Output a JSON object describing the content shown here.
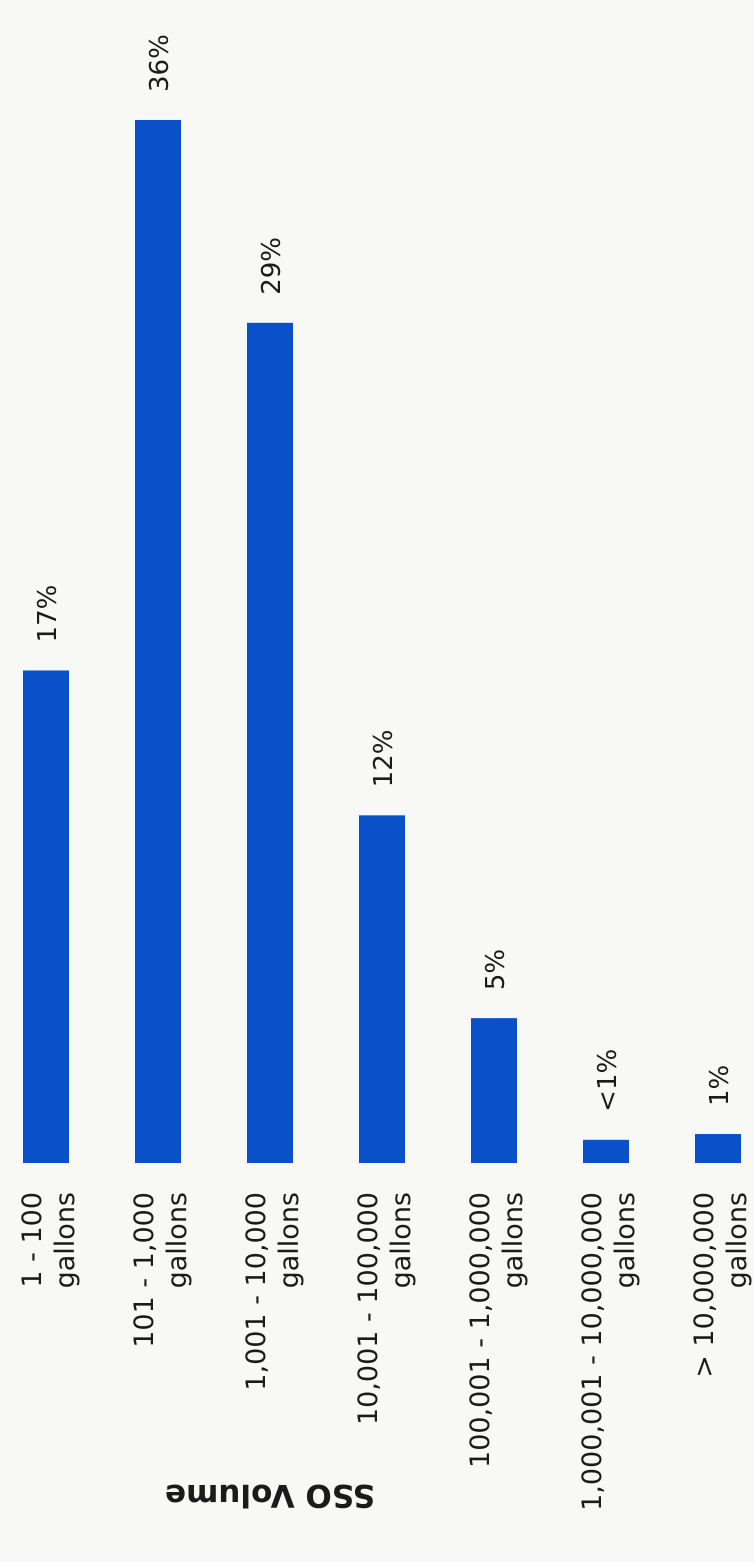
{
  "chart_data": {
    "type": "bar",
    "orientation": "rotated-90-clockwise",
    "categories": [
      [
        "1 - 100",
        "gallons"
      ],
      [
        "101 - 1,000",
        "gallons"
      ],
      [
        "1,001 - 10,000",
        "gallons"
      ],
      [
        "10,001 - 100,000",
        "gallons"
      ],
      [
        "100,001 - 1,000,000",
        "gallons"
      ],
      [
        "1,000,001 - 10,000,000",
        "gallons"
      ],
      [
        "> 10,000,000",
        "gallons"
      ]
    ],
    "values": [
      17,
      36,
      29,
      12,
      5,
      0.8,
      1
    ],
    "value_labels": [
      "17%",
      "36%",
      "29%",
      "12%",
      "5%",
      "<1%",
      "1%"
    ],
    "xlabel": "SSO Volume",
    "ylim": [
      0,
      36
    ],
    "grid": false,
    "bar_color": "#0a50c8"
  }
}
